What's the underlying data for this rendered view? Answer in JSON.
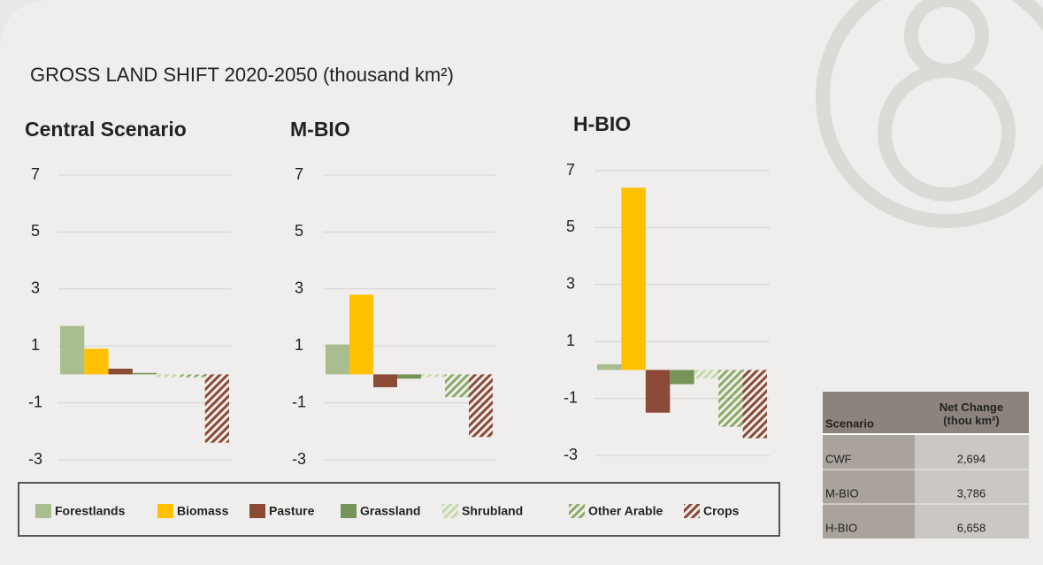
{
  "title": "GROSS LAND SHIFT 2020-2050 (thousand km²)",
  "chart_data": [
    {
      "type": "bar",
      "title": "Central Scenario",
      "ylim": [
        -3,
        7
      ],
      "yticks": [
        7,
        5,
        3,
        1,
        -1,
        -3
      ],
      "grid": true,
      "series": [
        {
          "name": "Forestlands",
          "color": "#a9bd8f",
          "hatch": false,
          "values": [
            1.7
          ]
        },
        {
          "name": "Biomass",
          "color": "#ffc000",
          "hatch": false,
          "values": [
            0.9
          ]
        },
        {
          "name": "Pasture",
          "color": "#8b4a36",
          "hatch": false,
          "values": [
            0.2
          ]
        },
        {
          "name": "Grassland",
          "color": "#76935a",
          "hatch": false,
          "values": [
            0.05
          ]
        },
        {
          "name": "Shrubland",
          "color": "#c6d9a8",
          "hatch": true,
          "values": [
            -0.1
          ]
        },
        {
          "name": "Other Arable",
          "color": "#8aaa66",
          "hatch": true,
          "values": [
            -0.1
          ]
        },
        {
          "name": "Crops",
          "color": "#8b4a36",
          "hatch": true,
          "values": [
            -2.4
          ]
        }
      ]
    },
    {
      "type": "bar",
      "title": "M-BIO",
      "ylim": [
        -3,
        7
      ],
      "yticks": [
        7,
        5,
        3,
        1,
        -1,
        -3
      ],
      "grid": true,
      "series": [
        {
          "name": "Forestlands",
          "color": "#a9bd8f",
          "hatch": false,
          "values": [
            1.05
          ]
        },
        {
          "name": "Biomass",
          "color": "#ffc000",
          "hatch": false,
          "values": [
            2.8
          ]
        },
        {
          "name": "Pasture",
          "color": "#8b4a36",
          "hatch": false,
          "values": [
            -0.45
          ]
        },
        {
          "name": "Grassland",
          "color": "#76935a",
          "hatch": false,
          "values": [
            -0.15
          ]
        },
        {
          "name": "Shrubland",
          "color": "#c6d9a8",
          "hatch": true,
          "values": [
            -0.1
          ]
        },
        {
          "name": "Other Arable",
          "color": "#8aaa66",
          "hatch": true,
          "values": [
            -0.8
          ]
        },
        {
          "name": "Crops",
          "color": "#8b4a36",
          "hatch": true,
          "values": [
            -2.2
          ]
        }
      ]
    },
    {
      "type": "bar",
      "title": "H-BIO",
      "ylim": [
        -3,
        7
      ],
      "yticks": [
        7,
        5,
        3,
        1,
        -1,
        -3
      ],
      "grid": true,
      "series": [
        {
          "name": "Forestlands",
          "color": "#a9bd8f",
          "hatch": false,
          "values": [
            0.2
          ]
        },
        {
          "name": "Biomass",
          "color": "#ffc000",
          "hatch": false,
          "values": [
            6.4
          ]
        },
        {
          "name": "Pasture",
          "color": "#8b4a36",
          "hatch": false,
          "values": [
            -1.5
          ]
        },
        {
          "name": "Grassland",
          "color": "#76935a",
          "hatch": false,
          "values": [
            -0.5
          ]
        },
        {
          "name": "Shrubland",
          "color": "#c6d9a8",
          "hatch": true,
          "values": [
            -0.3
          ]
        },
        {
          "name": "Other Arable",
          "color": "#8aaa66",
          "hatch": true,
          "values": [
            -2.0
          ]
        },
        {
          "name": "Crops",
          "color": "#8b4a36",
          "hatch": true,
          "values": [
            -2.4
          ]
        }
      ]
    }
  ],
  "table": {
    "header": [
      "Scenario",
      "Net Change (thou km²)"
    ],
    "rows": [
      [
        "CWF",
        "2,694"
      ],
      [
        "M-BIO",
        "3,786"
      ],
      [
        "H-BIO",
        "6,658"
      ]
    ]
  }
}
